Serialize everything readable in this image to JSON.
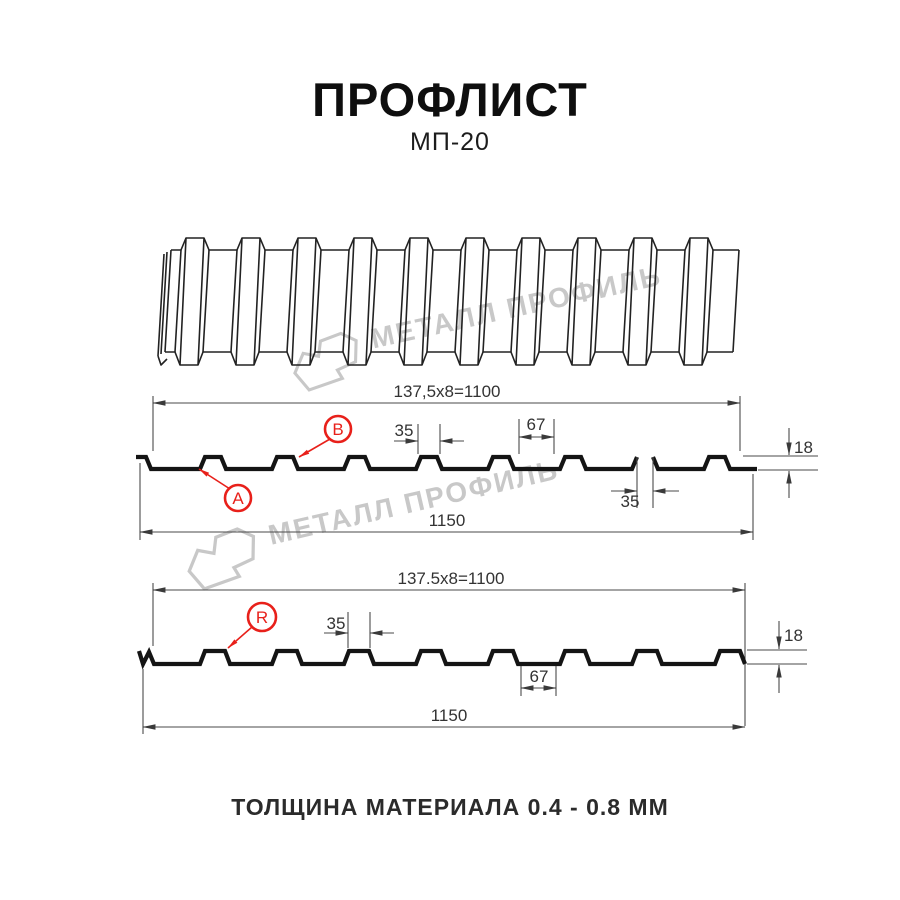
{
  "header": {
    "title": "ПРОФЛИСТ",
    "subtitle": "МП-20"
  },
  "watermark": {
    "text": "МЕТАЛЛ ПРОФИЛЬ"
  },
  "footer": {
    "thickness_note": "ТОЛЩИНА МАТЕРИАЛА 0.4 - 0.8 ММ"
  },
  "colors": {
    "accent_red": "#e8201a",
    "line_dark": "#141414",
    "dim_line": "#4a4a4a",
    "watermark_gray": "#c8c8c8"
  },
  "section_a": {
    "top_dim": "137,5x8=1100",
    "rib_top_width": "35",
    "valley_width": "67",
    "height": "18",
    "rib_top_width_lower": "35",
    "total_width": "1150",
    "label_a": "A",
    "label_b": "B"
  },
  "section_r": {
    "top_dim": "137.5x8=1100",
    "rib_top_width": "35",
    "valley_width": "67",
    "height": "18",
    "total_width": "1150",
    "label_r": "R"
  }
}
